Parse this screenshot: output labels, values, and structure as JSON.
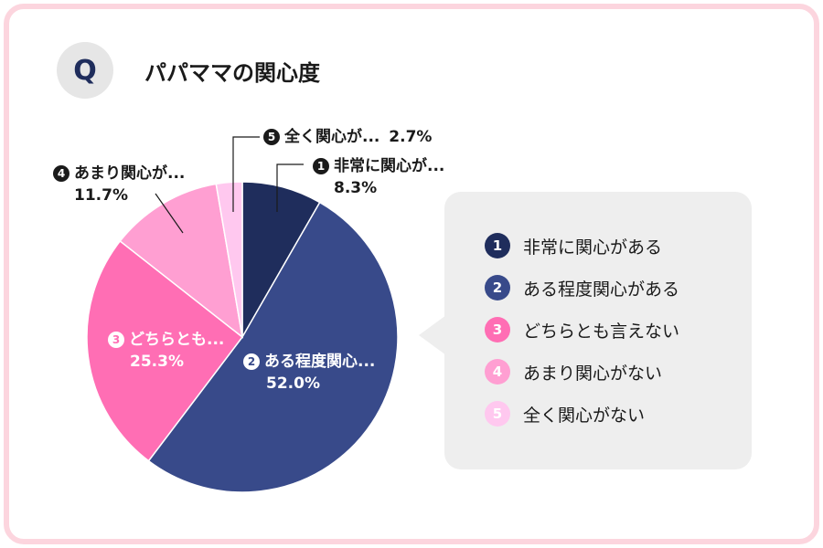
{
  "header": {
    "badge": "Q",
    "title": "パパママの関心度"
  },
  "chart_data": {
    "type": "pie",
    "title": "パパママの関心度",
    "start_angle": "12 o'clock, clockwise",
    "slices": [
      {
        "id": 1,
        "label": "非常に関心がある",
        "short_label": "非常に関心が...",
        "value": 8.3,
        "value_text": "8.3%",
        "color": "#1f2d5c"
      },
      {
        "id": 2,
        "label": "ある程度関心がある",
        "short_label": "ある程度関心...",
        "value": 52.0,
        "value_text": "52.0%",
        "color": "#384a8a"
      },
      {
        "id": 3,
        "label": "どちらとも言えない",
        "short_label": "どちらとも...",
        "value": 25.3,
        "value_text": "25.3%",
        "color": "#ff6eb4"
      },
      {
        "id": 4,
        "label": "あまり関心がない",
        "short_label": "あまり関心が...",
        "value": 11.7,
        "value_text": "11.7%",
        "color": "#ff9fd2"
      },
      {
        "id": 5,
        "label": "全く関心がない",
        "short_label": "全く関心が...",
        "value": 2.7,
        "value_text": "2.7%",
        "color": "#ffc8ef"
      }
    ]
  }
}
